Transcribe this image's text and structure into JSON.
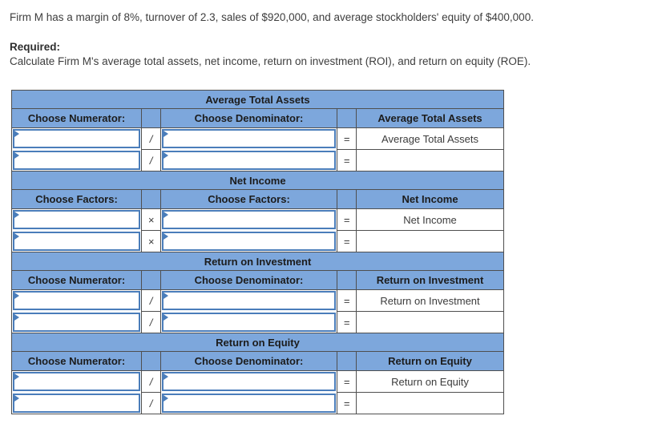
{
  "intro": {
    "problem": "Firm M has a margin of 8%, turnover of 2.3, sales of $920,000, and average stockholders' equity of $400,000.",
    "required_label": "Required:",
    "required_text": "Calculate Firm M's average total assets, net income, return on investment (ROI), and return on equity (ROE)."
  },
  "colors": {
    "header-blue": "#7da7dc",
    "box-border": "#4a7dba",
    "grid": "#4f4f4f",
    "header-text": "#1c1c1c",
    "body-text": "#3d3d3d"
  },
  "sections": [
    {
      "title": "Average Total Assets",
      "left_header": "Choose Numerator:",
      "right_header": "Choose Denominator:",
      "result_header": "Average Total Assets",
      "operator": "/",
      "equals": "=",
      "rows": [
        {
          "left_value": "",
          "right_value": "",
          "result": "Average Total Assets"
        },
        {
          "left_value": "",
          "right_value": "",
          "result": ""
        }
      ]
    },
    {
      "title": "Net Income",
      "left_header": "Choose Factors:",
      "right_header": "Choose Factors:",
      "result_header": "Net Income",
      "operator": "×",
      "equals": "=",
      "rows": [
        {
          "left_value": "",
          "right_value": "",
          "result": "Net Income"
        },
        {
          "left_value": "",
          "right_value": "",
          "result": ""
        }
      ]
    },
    {
      "title": "Return on Investment",
      "left_header": "Choose Numerator:",
      "right_header": "Choose Denominator:",
      "result_header": "Return on Investment",
      "operator": "/",
      "equals": "=",
      "rows": [
        {
          "left_value": "",
          "right_value": "",
          "result": "Return on Investment"
        },
        {
          "left_value": "",
          "right_value": "",
          "result": ""
        }
      ]
    },
    {
      "title": "Return on Equity",
      "left_header": "Choose Numerator:",
      "right_header": "Choose Denominator:",
      "result_header": "Return on Equity",
      "operator": "/",
      "equals": "=",
      "rows": [
        {
          "left_value": "",
          "right_value": "",
          "result": "Return on Equity"
        },
        {
          "left_value": "",
          "right_value": "",
          "result": ""
        }
      ]
    }
  ]
}
